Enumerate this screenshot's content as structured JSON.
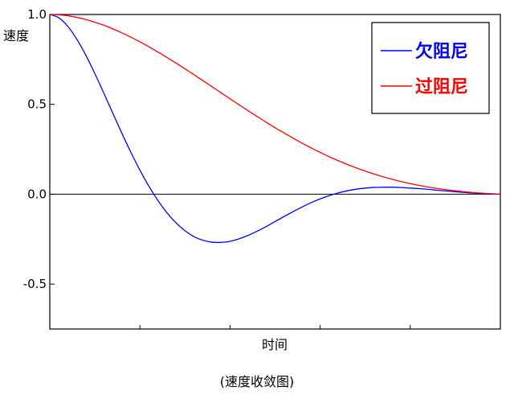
{
  "chart_data": {
    "type": "line",
    "title": "",
    "caption": "(速度收敛图)",
    "xlabel": "时间",
    "ylabel": "速度",
    "xlim": [
      0,
      10
    ],
    "ylim": [
      -0.75,
      1.0
    ],
    "yticks": [
      1.0,
      0.5,
      0.0,
      -0.5
    ],
    "ytick_labels": [
      "1.0",
      "0.5",
      "0.0",
      "-0.5"
    ],
    "xticks": [
      2,
      4,
      6,
      8
    ],
    "x_tick_labels_shown": false,
    "zero_line": true,
    "grid": false,
    "legend_position": "top-right",
    "x": [
      0.0,
      0.2,
      0.4,
      0.6,
      0.8,
      1.0,
      1.2,
      1.4,
      1.6,
      1.8,
      2.0,
      2.2,
      2.4,
      2.6,
      2.8,
      3.0,
      3.2,
      3.4,
      3.6,
      3.8,
      4.0,
      4.2,
      4.4,
      4.6,
      4.8,
      5.0,
      5.2,
      5.4,
      5.6,
      5.8,
      6.0,
      6.2,
      6.4,
      6.6,
      6.8,
      7.0,
      7.2,
      7.4,
      7.6,
      7.8,
      8.0,
      8.2,
      8.4,
      8.6,
      8.8,
      9.0,
      9.2,
      9.4,
      9.6,
      9.8,
      10.0
    ],
    "series": [
      {
        "name": "欠阻尼",
        "color": "#0000ff",
        "values": [
          1.0,
          0.982,
          0.934,
          0.862,
          0.773,
          0.671,
          0.562,
          0.45,
          0.339,
          0.233,
          0.134,
          0.044,
          -0.035,
          -0.103,
          -0.159,
          -0.203,
          -0.236,
          -0.256,
          -0.267,
          -0.268,
          -0.262,
          -0.248,
          -0.229,
          -0.206,
          -0.18,
          -0.152,
          -0.124,
          -0.097,
          -0.071,
          -0.047,
          -0.026,
          -0.008,
          0.007,
          0.019,
          0.028,
          0.034,
          0.038,
          0.039,
          0.039,
          0.037,
          0.034,
          0.031,
          0.027,
          0.022,
          0.018,
          0.014,
          0.01,
          0.006,
          0.003,
          0.001,
          0.0
        ]
      },
      {
        "name": "过阻尼",
        "color": "#ff0000",
        "values": [
          1.0,
          0.998,
          0.993,
          0.984,
          0.972,
          0.957,
          0.94,
          0.92,
          0.898,
          0.874,
          0.848,
          0.82,
          0.791,
          0.761,
          0.73,
          0.698,
          0.665,
          0.632,
          0.598,
          0.565,
          0.531,
          0.498,
          0.465,
          0.433,
          0.401,
          0.37,
          0.341,
          0.312,
          0.284,
          0.258,
          0.233,
          0.209,
          0.187,
          0.166,
          0.147,
          0.129,
          0.112,
          0.097,
          0.083,
          0.07,
          0.059,
          0.049,
          0.04,
          0.032,
          0.025,
          0.019,
          0.014,
          0.009,
          0.006,
          0.003,
          0.0
        ]
      }
    ]
  }
}
